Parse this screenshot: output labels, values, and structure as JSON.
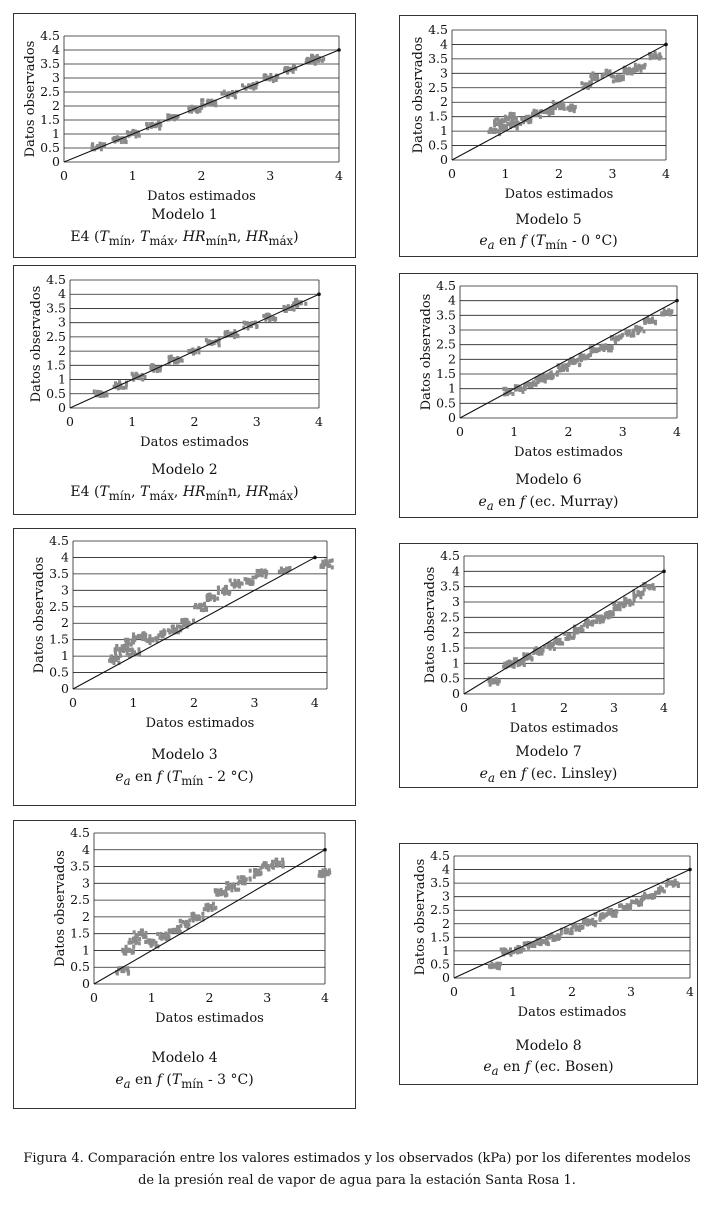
{
  "chart_data": [
    {
      "type": "scatter",
      "model_label": "Modelo 1",
      "formula": "E4 (Tmín, Tmáx, HRmínn, HRmáx)",
      "xlabel": "Datos estimados",
      "ylabel": "Datos observados",
      "xlim": [
        0,
        4
      ],
      "ylim": [
        0,
        4.5
      ],
      "x_ticks": [
        "0",
        "1",
        "2",
        "3",
        "4"
      ],
      "y_ticks": [
        "0",
        "0.5",
        "1",
        "1.5",
        "2",
        "2.5",
        "3",
        "3.5",
        "4",
        "4.5"
      ],
      "grid": "horizontal",
      "series": [
        {
          "kind": "points",
          "x": [
            0.5,
            0.8,
            1.0,
            1.3,
            1.6,
            1.9,
            2.1,
            2.4,
            2.7,
            3.0,
            3.3,
            3.6,
            3.7
          ],
          "y": [
            0.55,
            0.82,
            1.02,
            1.3,
            1.62,
            1.9,
            2.12,
            2.42,
            2.72,
            3.0,
            3.3,
            3.62,
            3.7
          ]
        },
        {
          "kind": "line",
          "x": [
            0,
            4
          ],
          "y": [
            0,
            4
          ]
        }
      ]
    },
    {
      "type": "scatter",
      "model_label": "Modelo 5",
      "formula": "ea en f (Tmín - 0 °C)",
      "xlabel": "Datos estimados",
      "ylabel": "Datos observados",
      "xlim": [
        0,
        4
      ],
      "ylim": [
        0,
        4.5
      ],
      "x_ticks": [
        "0",
        "1",
        "2",
        "3",
        "4"
      ],
      "y_ticks": [
        "0",
        "0.5",
        "1",
        "1.5",
        "2",
        "2.5",
        "3",
        "3.5",
        "4",
        "4.5"
      ],
      "grid": "horizontal",
      "series": [
        {
          "kind": "points",
          "x": [
            0.8,
            0.9,
            1.0,
            1.1,
            1.2,
            1.4,
            1.6,
            1.8,
            2.0,
            2.2,
            2.5,
            2.7,
            2.9,
            3.1,
            3.3,
            3.5,
            3.8
          ],
          "y": [
            1.0,
            1.3,
            1.15,
            1.5,
            1.2,
            1.4,
            1.6,
            1.7,
            1.9,
            1.8,
            2.6,
            2.9,
            3.0,
            2.8,
            3.1,
            3.2,
            3.6
          ]
        },
        {
          "kind": "line",
          "x": [
            0,
            4
          ],
          "y": [
            0,
            4
          ]
        }
      ]
    },
    {
      "type": "scatter",
      "model_label": "Modelo 2",
      "formula": "E4 (Tmín, Tmáx, HRmínn, HRmáx)",
      "xlabel": "Datos estimados",
      "ylabel": "Datos observados",
      "xlim": [
        0,
        4
      ],
      "ylim": [
        0,
        4.5
      ],
      "x_ticks": [
        "0",
        "1",
        "2",
        "3",
        "4"
      ],
      "y_ticks": [
        "0",
        "0.5",
        "1",
        "1.5",
        "2",
        "2.5",
        "3",
        "3.5",
        "4",
        "4.5"
      ],
      "grid": "horizontal",
      "series": [
        {
          "kind": "points",
          "x": [
            0.5,
            0.8,
            1.1,
            1.4,
            1.7,
            2.0,
            2.3,
            2.6,
            2.9,
            3.2,
            3.5,
            3.7
          ],
          "y": [
            0.5,
            0.8,
            1.1,
            1.4,
            1.7,
            2.0,
            2.3,
            2.6,
            2.9,
            3.2,
            3.5,
            3.7
          ]
        },
        {
          "kind": "line",
          "x": [
            0,
            4
          ],
          "y": [
            0,
            4
          ]
        }
      ]
    },
    {
      "type": "scatter",
      "model_label": "Modelo 6",
      "formula": "ea en f (ec. Murray)",
      "xlabel": "Datos estimados",
      "ylabel": "Datos observados",
      "xlim": [
        0,
        4
      ],
      "ylim": [
        0,
        4.5
      ],
      "x_ticks": [
        "0",
        "1",
        "2",
        "3",
        "4"
      ],
      "y_ticks": [
        "0",
        "0.5",
        "1",
        "1.5",
        "2",
        "2.5",
        "3",
        "3.5",
        "4",
        "4.5"
      ],
      "grid": "horizontal",
      "series": [
        {
          "kind": "points",
          "x": [
            0.9,
            1.1,
            1.3,
            1.5,
            1.7,
            1.9,
            2.1,
            2.3,
            2.5,
            2.7,
            2.9,
            3.1,
            3.3,
            3.5,
            3.8
          ],
          "y": [
            0.9,
            1.0,
            1.15,
            1.3,
            1.45,
            1.7,
            1.9,
            2.05,
            2.3,
            2.4,
            2.7,
            2.9,
            3.0,
            3.3,
            3.6
          ]
        },
        {
          "kind": "line",
          "x": [
            0,
            4
          ],
          "y": [
            0,
            4
          ]
        }
      ]
    },
    {
      "type": "scatter",
      "model_label": "Modelo 3",
      "formula": "ea en f (Tmín - 2 °C)",
      "xlabel": "Datos estimados",
      "ylabel": "Datos observados",
      "xlim": [
        0,
        4.2
      ],
      "ylim": [
        0,
        4.5
      ],
      "x_ticks": [
        "0",
        "1",
        "2",
        "3",
        "4"
      ],
      "y_ticks": [
        "0",
        "0.5",
        "1",
        "1.5",
        "2",
        "2.5",
        "3",
        "3.5",
        "4",
        "4.5"
      ],
      "grid": "horizontal",
      "series": [
        {
          "kind": "points",
          "x": [
            0.7,
            0.8,
            0.9,
            1.0,
            1.1,
            1.3,
            1.5,
            1.7,
            1.9,
            2.1,
            2.3,
            2.5,
            2.7,
            2.9,
            3.1,
            3.5,
            4.2
          ],
          "y": [
            0.9,
            1.2,
            1.4,
            1.1,
            1.6,
            1.5,
            1.7,
            1.8,
            2.0,
            2.5,
            2.8,
            3.0,
            3.2,
            3.3,
            3.5,
            3.6,
            3.8
          ]
        },
        {
          "kind": "line",
          "x": [
            0,
            4
          ],
          "y": [
            0,
            4
          ]
        }
      ]
    },
    {
      "type": "scatter",
      "model_label": "Modelo 7",
      "formula": "ea en f (ec. Linsley)",
      "xlabel": "Datos estimados",
      "ylabel": "Datos observados",
      "xlim": [
        0,
        4
      ],
      "ylim": [
        0,
        4.5
      ],
      "x_ticks": [
        "0",
        "1",
        "2",
        "3",
        "4"
      ],
      "y_ticks": [
        "0",
        "0.5",
        "1",
        "1.5",
        "2",
        "2.5",
        "3",
        "3.5",
        "4",
        "4.5"
      ],
      "grid": "horizontal",
      "series": [
        {
          "kind": "points",
          "x": [
            0.6,
            0.9,
            1.1,
            1.3,
            1.5,
            1.7,
            1.9,
            2.1,
            2.3,
            2.5,
            2.7,
            2.9,
            3.1,
            3.3,
            3.5,
            3.7
          ],
          "y": [
            0.4,
            0.95,
            1.05,
            1.2,
            1.4,
            1.55,
            1.75,
            1.9,
            2.1,
            2.3,
            2.45,
            2.6,
            2.85,
            3.0,
            3.25,
            3.5
          ]
        },
        {
          "kind": "line",
          "x": [
            0,
            4
          ],
          "y": [
            0,
            4
          ]
        }
      ]
    },
    {
      "type": "scatter",
      "model_label": "Modelo 4",
      "formula": "ea en f (Tmín - 3 °C)",
      "xlabel": "Datos estimados",
      "ylabel": "Datos observados",
      "xlim": [
        0,
        4
      ],
      "ylim": [
        0,
        4.5
      ],
      "x_ticks": [
        "0",
        "1",
        "2",
        "3",
        "4"
      ],
      "y_ticks": [
        "0",
        "0.5",
        "1",
        "1.5",
        "2",
        "2.5",
        "3",
        "3.5",
        "4",
        "4.5"
      ],
      "grid": "horizontal",
      "series": [
        {
          "kind": "points",
          "x": [
            0.5,
            0.6,
            0.7,
            0.8,
            1.0,
            1.2,
            1.4,
            1.6,
            1.8,
            2.0,
            2.2,
            2.4,
            2.6,
            2.8,
            3.0,
            3.2,
            4.0
          ],
          "y": [
            0.4,
            1.0,
            1.3,
            1.5,
            1.2,
            1.4,
            1.6,
            1.8,
            2.0,
            2.3,
            2.7,
            2.9,
            3.1,
            3.3,
            3.5,
            3.6,
            3.3
          ]
        },
        {
          "kind": "line",
          "x": [
            0,
            4
          ],
          "y": [
            0,
            4
          ]
        }
      ]
    },
    {
      "type": "scatter",
      "model_label": "Modelo 8",
      "formula": "ea en f (ec. Bosen)",
      "xlabel": "Datos estimados",
      "ylabel": "Datos observados",
      "xlim": [
        0,
        4
      ],
      "ylim": [
        0,
        4.5
      ],
      "x_ticks": [
        "0",
        "1",
        "2",
        "3",
        "4"
      ],
      "y_ticks": [
        "0",
        "0.5",
        "1",
        "1.5",
        "2",
        "2.5",
        "3",
        "3.5",
        "4",
        "4.5"
      ],
      "grid": "horizontal",
      "series": [
        {
          "kind": "points",
          "x": [
            0.7,
            0.9,
            1.1,
            1.3,
            1.5,
            1.7,
            1.9,
            2.1,
            2.3,
            2.5,
            2.7,
            2.9,
            3.1,
            3.3,
            3.5,
            3.7
          ],
          "y": [
            0.45,
            0.95,
            1.05,
            1.2,
            1.35,
            1.5,
            1.7,
            1.85,
            2.05,
            2.25,
            2.4,
            2.6,
            2.8,
            3.0,
            3.25,
            3.5
          ]
        },
        {
          "kind": "line",
          "x": [
            0,
            4
          ],
          "y": [
            0,
            4
          ]
        }
      ]
    }
  ],
  "figure_caption": {
    "line1": "Figura 4. Comparación entre los valores estimados y los observados (kPa) por los diferentes modelos",
    "line2": "de la presión real de vapor de agua para la estación Santa Rosa 1."
  },
  "colors": {
    "points": "#8a8a8a",
    "line": "#111111",
    "grid": "#222222",
    "frame": "#333333"
  }
}
